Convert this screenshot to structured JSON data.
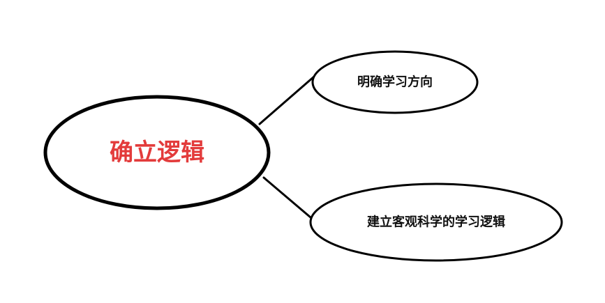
{
  "diagram": {
    "center": {
      "label": "确立逻辑",
      "text_color": "#e33b3b"
    },
    "branches": [
      {
        "label": "明确学习方向"
      },
      {
        "label": "建立客观科学的学习逻辑"
      }
    ],
    "line_color": "#000000",
    "background_color": "#ffffff"
  }
}
